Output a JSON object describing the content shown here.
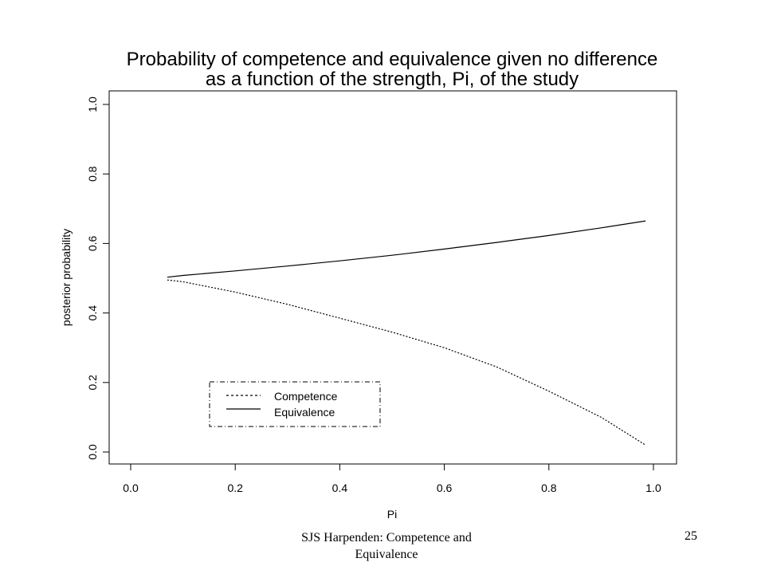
{
  "chart_data": {
    "type": "line",
    "title": "Probability of competence and equivalence given no difference\nas a function of the strength, Pi, of the study",
    "xlabel": "Pi",
    "ylabel": "posterior probability",
    "xlim": [
      0.0,
      1.0
    ],
    "ylim": [
      0.0,
      1.0
    ],
    "xticks": [
      "0.0",
      "0.2",
      "0.4",
      "0.6",
      "0.8",
      "1.0"
    ],
    "yticks": [
      "0.0",
      "0.2",
      "0.4",
      "0.6",
      "0.8",
      "1.0"
    ],
    "grid": false,
    "legend_position": "bottom-left",
    "series": [
      {
        "name": "Competence",
        "line_style": "dotted",
        "x": [
          0.07,
          0.1,
          0.2,
          0.3,
          0.4,
          0.5,
          0.6,
          0.7,
          0.8,
          0.9,
          0.985
        ],
        "y": [
          0.495,
          0.49,
          0.46,
          0.425,
          0.385,
          0.345,
          0.3,
          0.245,
          0.175,
          0.1,
          0.02
        ]
      },
      {
        "name": "Equivalence",
        "line_style": "solid",
        "x": [
          0.07,
          0.1,
          0.2,
          0.3,
          0.4,
          0.5,
          0.6,
          0.7,
          0.8,
          0.9,
          0.985
        ],
        "y": [
          0.503,
          0.508,
          0.521,
          0.535,
          0.55,
          0.566,
          0.584,
          0.603,
          0.623,
          0.645,
          0.665
        ]
      }
    ]
  },
  "footer": {
    "left_text": "SJS Harpenden: Competence and\nEquivalence",
    "page_number": "25"
  }
}
